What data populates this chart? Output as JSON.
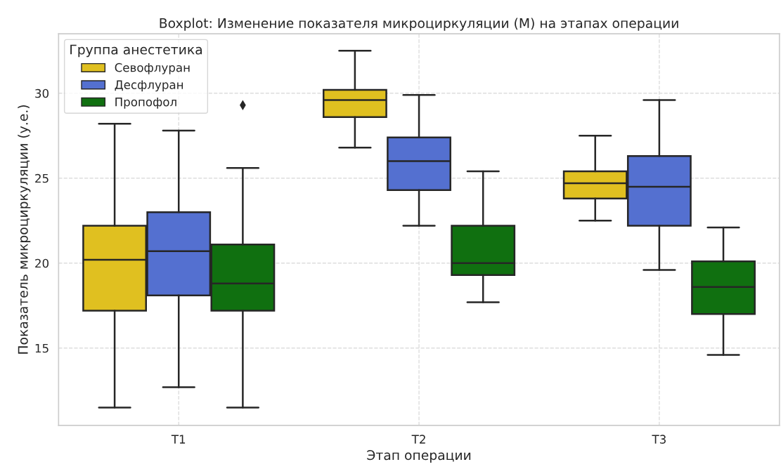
{
  "chart_data": {
    "type": "box",
    "title": "Boxplot: Изменение показателя микроциркуляции (M) на этапах операции",
    "xlabel": "Этап операции",
    "ylabel": "Показатель микроциркуляции (у.е.)",
    "legend_title": "Группа анестетика",
    "categories": [
      "T1",
      "T2",
      "T3"
    ],
    "series": [
      {
        "name": "Севофлуран",
        "color": "#e0c020",
        "boxes": [
          {
            "low": 11.5,
            "q1": 17.2,
            "median": 20.2,
            "q3": 22.2,
            "high": 28.2
          },
          {
            "low": 26.8,
            "q1": 28.6,
            "median": 29.6,
            "q3": 30.2,
            "high": 32.5
          },
          {
            "low": 22.5,
            "q1": 23.8,
            "median": 24.7,
            "q3": 25.4,
            "high": 27.5
          }
        ]
      },
      {
        "name": "Десфлуран",
        "color": "#5470d0",
        "boxes": [
          {
            "low": 12.7,
            "q1": 18.1,
            "median": 20.7,
            "q3": 23.0,
            "high": 27.8
          },
          {
            "low": 22.2,
            "q1": 24.3,
            "median": 26.0,
            "q3": 27.4,
            "high": 29.9
          },
          {
            "low": 19.6,
            "q1": 22.2,
            "median": 24.5,
            "q3": 26.3,
            "high": 29.6
          }
        ]
      },
      {
        "name": "Пропофол",
        "color": "#107010",
        "boxes": [
          {
            "low": 11.5,
            "q1": 17.2,
            "median": 18.8,
            "q3": 21.1,
            "high": 25.6,
            "outliers": [
              29.3
            ]
          },
          {
            "low": 17.7,
            "q1": 19.3,
            "median": 20.0,
            "q3": 22.2,
            "high": 25.4
          },
          {
            "low": 14.6,
            "q1": 17.0,
            "median": 18.6,
            "q3": 20.1,
            "high": 22.1
          }
        ]
      }
    ],
    "ylim": [
      10.45,
      33.5
    ],
    "yticks": [
      15,
      20,
      25,
      30
    ],
    "grid": true,
    "legend": "top left"
  }
}
